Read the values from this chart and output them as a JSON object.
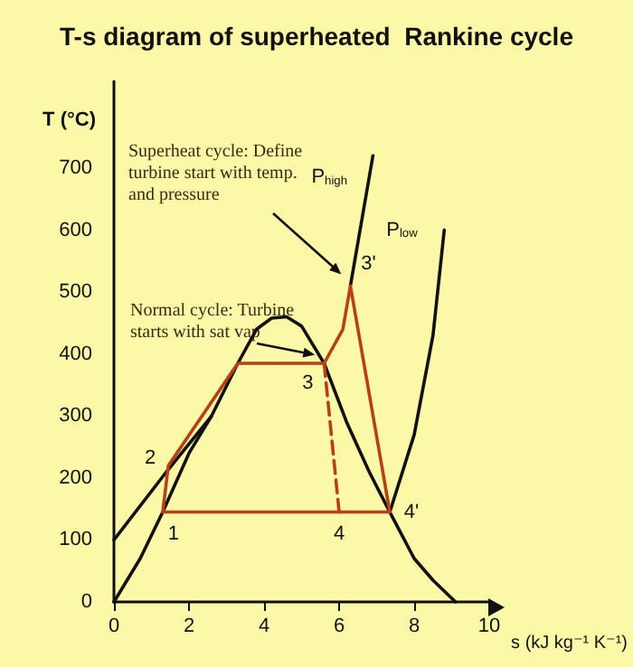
{
  "chart_data": {
    "type": "line",
    "title": "T-s diagram of superheated  Rankine cycle",
    "xlabel": "s (kJ kg⁻¹ K⁻¹)",
    "ylabel": "T (°C)",
    "series": [
      {
        "color": "#111111",
        "x": [
          0,
          0.7,
          1.3,
          2,
          2.6,
          3.3,
          3.8,
          4.2,
          4.6,
          5.0,
          5.6,
          6.2,
          6.8,
          7.35,
          8.0,
          8.5,
          9.1
        ],
        "values": [
          0,
          70,
          145,
          240,
          300,
          385,
          440,
          458,
          460,
          445,
          385,
          290,
          210,
          145,
          70,
          35,
          0
        ]
      },
      {
        "name": "P$_{high}$",
        "color": "#111111",
        "x": [
          0,
          1.4,
          2.6,
          4.5,
          6.3,
          6.9
        ],
        "values": [
          100,
          210,
          300,
          null,
          510,
          720
        ]
      },
      {
        "name": "P$_{low}$",
        "color": "#111111",
        "x": [
          7.35,
          8.0,
          8.5,
          8.8
        ],
        "values": [
          145,
          270,
          430,
          600
        ]
      },
      {
        "color": "#b5401a",
        "x": [
          1.3,
          1.45,
          3.3,
          5.6,
          6.1,
          6.3,
          7.35
        ],
        "values": [
          145,
          220,
          385,
          385,
          440,
          510,
          145
        ]
      },
      {
        "color": "#b5401a",
        "x": [
          1.3,
          7.35
        ],
        "values": [
          145,
          145
        ]
      },
      {
        "color": "#b5401a",
        "line_style": "dashed",
        "x": [
          5.6,
          6.0
        ],
        "values": [
          385,
          145
        ]
      }
    ],
    "annotations": [
      {
        "text": "1",
        "x": 1.3,
        "y": 145
      },
      {
        "text": "2",
        "x": 1.45,
        "y": 220
      },
      {
        "text": "3",
        "x": 5.6,
        "y": 385
      },
      {
        "text": "3'",
        "x": 6.3,
        "y": 510
      },
      {
        "text": "4",
        "x": 6.0,
        "y": 145
      },
      {
        "text": "4'",
        "x": 7.35,
        "y": 145
      },
      {
        "text": "Superheat cycle: Define turbine start with temp. and pressure",
        "x": 6.2,
        "y": 520
      },
      {
        "text": "Normal cycle: Turbine starts with sat vap",
        "x": 5.5,
        "y": 390
      }
    ],
    "xlim": [
      0,
      10
    ],
    "xticks": [
      0,
      2,
      4,
      6,
      8,
      10
    ],
    "ylim": [
      0,
      840
    ],
    "yticks": [
      0,
      100,
      200,
      300,
      400,
      500,
      600,
      700
    ],
    "grid": false,
    "legend": false,
    "marker": "none",
    "line_style": "solid"
  }
}
